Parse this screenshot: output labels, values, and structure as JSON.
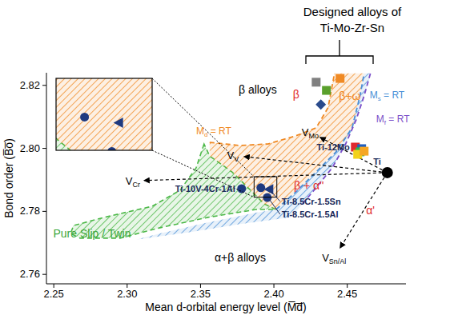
{
  "chart_data": {
    "type": "scatter",
    "title": "Designed alloys of Ti-Mo-Zr-Sn",
    "x_label": "Mean d-orbital energy level (M̅d̅)",
    "y_label": "Bond order (B̅o̅)",
    "xlim": [
      2.245,
      2.49
    ],
    "ylim": [
      2.757,
      2.824
    ],
    "xticks": [
      2.25,
      {
        "value": 2.3,
        "label": "2.30"
      },
      2.35,
      {
        "value": 2.4,
        "label": "2.40"
      },
      2.45
    ],
    "yticks": [
      2.76,
      2.78,
      {
        "value": 2.8,
        "label": "2.80"
      },
      2.82
    ],
    "grid": false,
    "series": [
      {
        "type": "area",
        "color": "#4cb848",
        "line_style": "dashed",
        "x": [
          2.3524,
          2.347,
          2.3361,
          2.317,
          2.2843,
          2.2635,
          2.2614,
          2.2679,
          2.2952,
          2.3224,
          2.3551,
          2.3879,
          2.4015,
          2.3933,
          2.3824,
          2.3715,
          2.3562
        ],
        "values": [
          2.8014,
          2.7938,
          2.7867,
          2.7816,
          2.7781,
          2.7755,
          2.773,
          2.7715,
          2.7715,
          2.7748,
          2.7781,
          2.7806,
          2.7806,
          2.7824,
          2.7875,
          2.7925,
          2.7976
        ]
      },
      {
        "type": "area",
        "color": "#4a8fd6",
        "line_style": "none",
        "x": [
          2.4015,
          2.4151,
          2.4288,
          2.4424,
          2.4533,
          2.4587,
          2.4615,
          2.4658,
          2.4615,
          2.456,
          2.4489,
          2.4397,
          2.4288,
          2.4195,
          2.4117,
          2.377,
          2.3442,
          2.3061,
          2.3224,
          2.3551,
          2.3879
        ],
        "values": [
          2.7806,
          2.7862,
          2.7925,
          2.7989,
          2.8065,
          2.8167,
          2.8238,
          2.8238,
          2.8167,
          2.809,
          2.8014,
          2.7938,
          2.7875,
          2.7824,
          2.7781,
          2.776,
          2.7735,
          2.771,
          2.773,
          2.7765,
          2.7796
        ]
      },
      {
        "type": "area",
        "color": "#f08a24",
        "line_style": "none",
        "x": [
          2.3562,
          2.377,
          2.396,
          2.4151,
          2.4288,
          2.4369,
          2.4413,
          2.4615,
          2.4587,
          2.4533,
          2.4424,
          2.4288,
          2.4151,
          2.4015,
          2.3933,
          2.3824,
          2.3715,
          2.3562
        ],
        "values": [
          2.8019,
          2.8009,
          2.8014,
          2.804,
          2.8065,
          2.8129,
          2.8238,
          2.8238,
          2.8167,
          2.8065,
          2.7989,
          2.7925,
          2.7862,
          2.7806,
          2.7824,
          2.7875,
          2.7925,
          2.7976
        ]
      },
      {
        "type": "line",
        "color": "#f08a24",
        "line_style": "dashed",
        "x": [
          2.3562,
          2.377,
          2.396,
          2.4151,
          2.4288,
          2.4369,
          2.4413
        ],
        "values": [
          2.8019,
          2.8009,
          2.8014,
          2.804,
          2.8065,
          2.8129,
          2.8238
        ]
      },
      {
        "type": "line",
        "color": "#4a8fd6",
        "line_style": "dashed",
        "x": [
          2.4015,
          2.4151,
          2.4288,
          2.4424,
          2.4533,
          2.4587,
          2.4615
        ],
        "values": [
          2.7806,
          2.7862,
          2.7925,
          2.7989,
          2.8065,
          2.8167,
          2.8238
        ]
      },
      {
        "type": "line",
        "color": "#7b4fc9",
        "line_style": "dashed",
        "x": [
          2.4195,
          2.4288,
          2.4397,
          2.4489,
          2.456,
          2.4615,
          2.4658
        ],
        "values": [
          2.7824,
          2.7875,
          2.7938,
          2.8014,
          2.809,
          2.8167,
          2.8238
        ]
      },
      {
        "type": "scatter",
        "marker": "square",
        "x": [
          2.4288,
          2.4358,
          2.4451,
          2.4555,
          2.4598,
          2.4587,
          2.4571,
          2.4615
        ],
        "values": [
          2.821,
          2.8184,
          2.8222,
          2.8004,
          2.7999,
          2.7989,
          2.7981,
          2.7991
        ],
        "colors": [
          "#808080",
          "#5aa02c",
          "#f08a24",
          "#e0282e",
          "#1f5fbf",
          "#2db34a",
          "#f2d21b",
          "#f5a623"
        ],
        "labels": [
          null,
          null,
          null,
          "Ti-12Mo",
          null,
          null,
          null,
          null
        ]
      },
      {
        "type": "scatter",
        "marker": "diamond",
        "color": "#2b4b8c",
        "x": [
          2.432
        ],
        "values": [
          2.8139
        ]
      },
      {
        "type": "scatter",
        "marker": "circle",
        "color": "#1f3a80",
        "x": [
          2.378,
          2.3911,
          2.3955
        ],
        "values": [
          2.7872,
          2.7875,
          2.7844
        ],
        "labels": [
          "Ti-10V-4Cr-1Al",
          null,
          "Ti-8.5Cr-1.5Al"
        ]
      },
      {
        "type": "scatter",
        "marker": "triangle",
        "color": "#1f3a80",
        "x": [
          2.3966
        ],
        "values": [
          2.787
        ],
        "labels": [
          "Ti-8.5Cr-1.5Sn"
        ]
      },
      {
        "type": "scatter",
        "marker": "circle",
        "color": "#000000",
        "x": [
          2.4773
        ],
        "values": [
          2.7923
        ],
        "labels": [
          "Ti"
        ]
      }
    ],
    "annotations": [
      {
        "text": "β alloys",
        "x": 2.389,
        "y": 2.8187,
        "color": "#000000"
      },
      {
        "text": "α+β alloys",
        "x": 2.377,
        "y": 2.7654,
        "color": "#000000"
      },
      {
        "text": "β",
        "x": 2.4151,
        "y": 2.8172,
        "color": "#e0282e"
      },
      {
        "text": "β+ω",
        "x": 2.4517,
        "y": 2.8167,
        "color": "#f08a24"
      },
      {
        "text": "β + α''",
        "x": 2.4238,
        "y": 2.7882,
        "color": "#e0282e"
      },
      {
        "text": "α'",
        "x": 2.4658,
        "y": 2.7804,
        "color": "#e0282e"
      },
      {
        "text": "Pure Slip / Twin",
        "x": 2.2761,
        "y": 2.773,
        "color": "#3aa63a"
      },
      {
        "text": "M",
        "sub": "d",
        "after": " = RT",
        "x": 2.347,
        "y": 2.8057,
        "color": "#f08a24"
      },
      {
        "text": "M",
        "sub": "s",
        "after": " = RT",
        "x": 2.4653,
        "y": 2.8172,
        "color": "#4a8fd6"
      },
      {
        "text": "M",
        "sub": "f",
        "after": " = RT",
        "x": 2.4697,
        "y": 2.8096,
        "color": "#7b4fc9"
      }
    ],
    "vectors": [
      {
        "text": "V",
        "sub": "V",
        "x": 2.3797,
        "y": 2.7974
      },
      {
        "text": "V",
        "sub": "Cr",
        "x": 2.3115,
        "y": 2.7898
      },
      {
        "text": "V",
        "sub": "Sn/Al",
        "x": 2.4451,
        "y": 2.7684
      },
      {
        "text": "V",
        "sub": "Mo",
        "x": 2.4315,
        "y": 2.8035
      }
    ],
    "inset": {
      "xlim": [
        2.3865,
        2.402
      ],
      "ylim": [
        2.7845,
        2.791
      ]
    }
  }
}
